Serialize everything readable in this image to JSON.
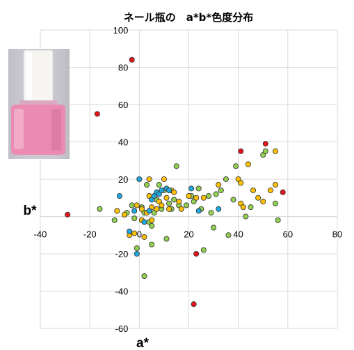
{
  "chart_data": {
    "type": "scatter",
    "title": "ネール瓶の　a*b*色度分布",
    "xlabel": "a*",
    "ylabel": "b*",
    "xlim": [
      -40,
      80
    ],
    "ylim": [
      -60,
      100
    ],
    "x_ticks": [
      -40,
      -20,
      0,
      20,
      40,
      60,
      80
    ],
    "y_ticks": [
      -60,
      -40,
      -20,
      0,
      20,
      40,
      60,
      80,
      100
    ],
    "grid": true,
    "colors": {
      "red": "#e8141c",
      "green": "#92d050",
      "yellow": "#ffc000",
      "blue": "#1fa8e0"
    },
    "series": [
      {
        "color": "#e8141c",
        "points": [
          [
            -3,
            84
          ],
          [
            -17,
            55
          ],
          [
            -29,
            1
          ],
          [
            41,
            35
          ],
          [
            51,
            39
          ],
          [
            58,
            13
          ],
          [
            23,
            -20
          ],
          [
            22,
            -47
          ]
        ]
      },
      {
        "color": "#92d050",
        "points": [
          [
            -16,
            4
          ],
          [
            -10,
            -2
          ],
          [
            -5,
            2
          ],
          [
            -3,
            6
          ],
          [
            -2,
            -1
          ],
          [
            -1,
            -17
          ],
          [
            1,
            5
          ],
          [
            2,
            2
          ],
          [
            2,
            -32
          ],
          [
            3,
            17
          ],
          [
            4,
            -3
          ],
          [
            5,
            -5
          ],
          [
            5,
            -15
          ],
          [
            6,
            2
          ],
          [
            7,
            9
          ],
          [
            8,
            17
          ],
          [
            9,
            4
          ],
          [
            10,
            14
          ],
          [
            11,
            -12
          ],
          [
            12,
            7
          ],
          [
            13,
            4
          ],
          [
            14,
            9
          ],
          [
            15,
            27
          ],
          [
            16,
            6
          ],
          [
            19,
            6
          ],
          [
            21,
            11
          ],
          [
            22,
            8
          ],
          [
            24,
            15
          ],
          [
            25,
            4
          ],
          [
            26,
            -18
          ],
          [
            28,
            11
          ],
          [
            29,
            2
          ],
          [
            30,
            -6
          ],
          [
            31,
            12
          ],
          [
            33,
            14
          ],
          [
            35,
            20
          ],
          [
            36,
            -10
          ],
          [
            38,
            9
          ],
          [
            39,
            27
          ],
          [
            43,
            0
          ],
          [
            45,
            5
          ],
          [
            50,
            33
          ],
          [
            51,
            35
          ],
          [
            55,
            7
          ],
          [
            56,
            -2
          ]
        ]
      },
      {
        "color": "#ffc000",
        "points": [
          [
            -9,
            3
          ],
          [
            -6,
            1
          ],
          [
            -4,
            -10
          ],
          [
            -2,
            -9
          ],
          [
            -1,
            6
          ],
          [
            1,
            4
          ],
          [
            1,
            -2
          ],
          [
            2,
            -11
          ],
          [
            3,
            2
          ],
          [
            4,
            20
          ],
          [
            4,
            11
          ],
          [
            5,
            5
          ],
          [
            5,
            -2
          ],
          [
            6,
            11
          ],
          [
            7,
            4
          ],
          [
            8,
            8
          ],
          [
            9,
            6
          ],
          [
            10,
            20
          ],
          [
            11,
            10
          ],
          [
            12,
            4
          ],
          [
            13,
            14
          ],
          [
            14,
            13
          ],
          [
            16,
            8
          ],
          [
            17,
            4
          ],
          [
            20,
            11
          ],
          [
            23,
            10
          ],
          [
            26,
            10
          ],
          [
            32,
            17
          ],
          [
            40,
            20
          ],
          [
            41,
            18
          ],
          [
            41,
            7
          ],
          [
            42,
            5
          ],
          [
            44,
            28
          ],
          [
            46,
            14
          ],
          [
            48,
            10
          ],
          [
            50,
            8
          ],
          [
            53,
            14
          ],
          [
            55,
            35
          ],
          [
            55,
            17
          ]
        ]
      },
      {
        "color": "#1fa8e0",
        "points": [
          [
            -8,
            11
          ],
          [
            -4,
            -8
          ],
          [
            -2,
            3
          ],
          [
            -1,
            -20
          ],
          [
            0,
            20
          ],
          [
            2,
            -3
          ],
          [
            4,
            3
          ],
          [
            5,
            9
          ],
          [
            6,
            11
          ],
          [
            7,
            13
          ],
          [
            8,
            12
          ],
          [
            9,
            14
          ],
          [
            11,
            15
          ],
          [
            12,
            14
          ],
          [
            21,
            15
          ],
          [
            24,
            3
          ],
          [
            32,
            4
          ]
        ]
      }
    ]
  },
  "photo": {
    "subject": "nail-polish-bottle"
  }
}
